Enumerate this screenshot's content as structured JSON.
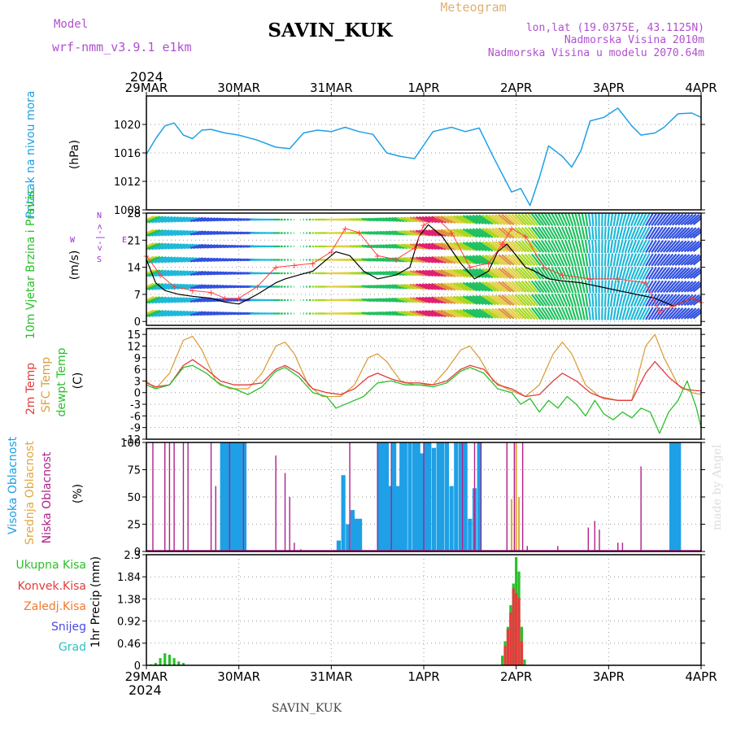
{
  "header": {
    "model_label": "Model",
    "model_name": "wrf-nmm_v3.9.1 e1km",
    "station": "SAVIN_KUK",
    "meteogram_label": "Meteogram",
    "lonlat": "lon,lat (19.0375E, 43.1125N)",
    "altitude": "Nadmorska Visina 2010m",
    "model_altitude": "Nadmorska Visina u modelu 2070.64m",
    "year_top": "2024",
    "year_bottom": "2024",
    "footer_station": "SAVIN_KUK",
    "watermark": "made by Angel"
  },
  "colors": {
    "pressure": "#1ea0e6",
    "wind_label": "#2ac02a",
    "wind_dir": "#9b30d0",
    "temp2m": "#e23c3c",
    "sfc": "#dba040",
    "dew": "#2ac02a",
    "high_cloud": "#1ea0e6",
    "mid_cloud": "#e0a840",
    "low_cloud": "#b0208a",
    "precip_total": "#2ac02a",
    "precip_conv": "#e23c3c",
    "freezing": "#f07a30",
    "snow": "#4a4ae0",
    "hail": "#30c0c0",
    "header_purple": "#b050d0",
    "meteogram_color": "#e0b070"
  },
  "chart_data": [
    {
      "type": "line",
      "name": "pressure",
      "x_ticks": [
        "29MAR",
        "30MAR",
        "31MAR",
        "1APR",
        "2APR",
        "3APR",
        "4APR"
      ],
      "ylabel": "Pritisak na nivou mora",
      "unit": "(hPa)",
      "ylim": [
        1008,
        1024
      ],
      "yticks": [
        1008,
        1012,
        1016,
        1020
      ],
      "grid": true,
      "series": [
        {
          "x": [
            0,
            0.1,
            0.2,
            0.3,
            0.4,
            0.5,
            0.6,
            0.7,
            0.85,
            1.0,
            1.2,
            1.4,
            1.55,
            1.7,
            1.85,
            2.0,
            2.15,
            2.3,
            2.45,
            2.6,
            2.75,
            2.9,
            3.1,
            3.3,
            3.45,
            3.6,
            3.75,
            3.85,
            3.95,
            4.05,
            4.15,
            4.25,
            4.35,
            4.5,
            4.6,
            4.7,
            4.8,
            4.95,
            5.1,
            5.25,
            5.35,
            5.5,
            5.6,
            5.75,
            5.9,
            6.0
          ],
          "y": [
            1015.8,
            1018.0,
            1019.8,
            1020.2,
            1018.5,
            1018.0,
            1019.2,
            1019.3,
            1018.8,
            1018.5,
            1017.8,
            1016.8,
            1016.6,
            1018.8,
            1019.2,
            1019.0,
            1019.6,
            1019.0,
            1018.6,
            1016.0,
            1015.5,
            1015.2,
            1019.0,
            1019.6,
            1019.0,
            1019.5,
            1015.5,
            1013.0,
            1010.5,
            1011.0,
            1008.6,
            1012.5,
            1017.0,
            1015.5,
            1014.0,
            1016.3,
            1020.5,
            1021.0,
            1022.3,
            1019.8,
            1018.5,
            1018.8,
            1019.6,
            1021.5,
            1021.6,
            1021.0
          ]
        }
      ]
    },
    {
      "type": "line",
      "name": "wind",
      "ylabel": "10m Vjetar Brzina i Pravac",
      "unit": "(m/s)",
      "direction_legend": [
        "W",
        "<-|->",
        "E",
        "N",
        "S"
      ],
      "ylim": [
        -1,
        28
      ],
      "yticks": [
        0,
        7,
        14,
        21,
        28
      ],
      "grid": true,
      "series": [
        {
          "name": "speed",
          "x": [
            0,
            0.1,
            0.2,
            0.35,
            0.5,
            0.7,
            0.85,
            1.0,
            1.2,
            1.4,
            1.5,
            1.65,
            1.8,
            1.95,
            2.05,
            2.2,
            2.35,
            2.5,
            2.7,
            2.85,
            2.95,
            3.05,
            3.2,
            3.4,
            3.55,
            3.7,
            3.8,
            3.9,
            4.0,
            4.1,
            4.2,
            4.35,
            4.5,
            4.7,
            4.9,
            5.1,
            5.3,
            5.5,
            5.7,
            5.9,
            6.0
          ],
          "y": [
            16,
            10,
            8,
            7,
            6.5,
            6,
            5,
            4.5,
            7,
            10,
            11,
            12,
            13,
            16,
            18,
            17,
            13,
            11,
            12,
            14,
            22,
            25,
            22,
            15,
            11,
            13,
            18,
            20,
            17,
            14,
            13,
            11,
            10.5,
            10,
            9,
            8,
            7,
            6,
            4,
            6,
            5
          ]
        },
        {
          "name": "gust",
          "x": [
            0,
            0.15,
            0.3,
            0.5,
            0.7,
            0.85,
            1.0,
            1.2,
            1.4,
            1.6,
            1.8,
            2.0,
            2.15,
            2.3,
            2.5,
            2.7,
            2.9,
            3.0,
            3.15,
            3.3,
            3.5,
            3.7,
            3.85,
            3.95,
            4.1,
            4.3,
            4.5,
            4.8,
            5.1,
            5.4,
            5.55,
            5.7,
            5.9,
            6.0
          ],
          "y": [
            17,
            12,
            9,
            8,
            7.5,
            6,
            6,
            9,
            14,
            14.5,
            15,
            18,
            24,
            23,
            17,
            16,
            19,
            25,
            26.5,
            23,
            14,
            15,
            20,
            24,
            22,
            14,
            12,
            11,
            11,
            10,
            2.5,
            4,
            6,
            5
          ]
        }
      ]
    },
    {
      "type": "line",
      "name": "temperature",
      "ylabel": [
        "2m Temp",
        "SFC Temp",
        "dewpt Temp"
      ],
      "unit": "(C)",
      "ylim": [
        -12,
        16.5
      ],
      "yticks": [
        -12,
        -9,
        -6,
        -3,
        0,
        3,
        6,
        9,
        12,
        15
      ],
      "grid": true,
      "series": [
        {
          "name": "2m Temp",
          "x": [
            0,
            0.1,
            0.25,
            0.4,
            0.5,
            0.65,
            0.8,
            0.95,
            1.1,
            1.25,
            1.4,
            1.5,
            1.65,
            1.8,
            1.95,
            2.1,
            2.25,
            2.4,
            2.5,
            2.65,
            2.8,
            2.95,
            3.1,
            3.25,
            3.4,
            3.5,
            3.65,
            3.8,
            3.95,
            4.1,
            4.25,
            4.4,
            4.5,
            4.65,
            4.8,
            4.95,
            5.1,
            5.25,
            5.4,
            5.5,
            5.65,
            5.8,
            5.95,
            6.0
          ],
          "y": [
            2.5,
            1.5,
            2,
            7,
            8.5,
            6,
            3,
            2,
            2,
            2.5,
            6,
            7,
            5,
            1,
            0,
            -0.5,
            1,
            4,
            5,
            3.5,
            2.5,
            2.5,
            2,
            3,
            6,
            7,
            6,
            2,
            1,
            -1,
            -0.5,
            3,
            5,
            3,
            0,
            -1.5,
            -2,
            -2,
            5,
            8,
            4,
            1,
            0.5,
            0.5
          ]
        },
        {
          "name": "SFC Temp",
          "x": [
            0,
            0.1,
            0.25,
            0.4,
            0.5,
            0.6,
            0.75,
            0.9,
            1.1,
            1.25,
            1.4,
            1.5,
            1.6,
            1.75,
            1.9,
            2.1,
            2.25,
            2.4,
            2.5,
            2.6,
            2.75,
            2.9,
            3.1,
            3.25,
            3.4,
            3.5,
            3.6,
            3.75,
            3.9,
            4.1,
            4.25,
            4.4,
            4.5,
            4.6,
            4.75,
            4.9,
            5.1,
            5.25,
            5.4,
            5.5,
            5.6,
            5.75,
            5.9,
            6.0
          ],
          "y": [
            3,
            1,
            5,
            13.5,
            14.5,
            11,
            3,
            1,
            1,
            5,
            12,
            13,
            10,
            2,
            -1,
            -1,
            2,
            9,
            10,
            8,
            3,
            2,
            2,
            6,
            11,
            12,
            9,
            3,
            1,
            -1,
            2,
            10,
            13,
            10,
            2,
            -1,
            -2,
            -2,
            12,
            15,
            9,
            2,
            0,
            -0.5
          ]
        },
        {
          "name": "dewpt Temp",
          "x": [
            0,
            0.1,
            0.25,
            0.4,
            0.5,
            0.65,
            0.8,
            0.95,
            1.1,
            1.25,
            1.4,
            1.5,
            1.65,
            1.8,
            1.95,
            2.05,
            2.2,
            2.35,
            2.5,
            2.65,
            2.8,
            2.95,
            3.1,
            3.25,
            3.4,
            3.5,
            3.65,
            3.8,
            3.95,
            4.05,
            4.15,
            4.25,
            4.35,
            4.45,
            4.55,
            4.65,
            4.75,
            4.85,
            4.95,
            5.05,
            5.15,
            5.25,
            5.35,
            5.45,
            5.55,
            5.65,
            5.75,
            5.85,
            5.95,
            6.0
          ],
          "y": [
            2,
            1,
            2,
            6.5,
            7,
            5,
            2,
            1,
            -0.5,
            1.5,
            5.5,
            6.5,
            4,
            0,
            -1,
            -4,
            -2.5,
            -1,
            2.5,
            3,
            2,
            2,
            1.5,
            2.5,
            5.5,
            6.5,
            5,
            1,
            0,
            -3,
            -1.5,
            -5,
            -2,
            -4,
            -1,
            -3,
            -6,
            -2,
            -5.5,
            -7,
            -5,
            -6.5,
            -4,
            -5,
            -10.5,
            -5,
            -2,
            3,
            -4,
            -9
          ]
        }
      ]
    },
    {
      "type": "bar",
      "name": "cloud",
      "ylabel": [
        "Visoka Oblacnost",
        "Srednja Oblacnost",
        "Niska Oblacnost"
      ],
      "unit": "(%)",
      "ylim": [
        0,
        100
      ],
      "yticks": [
        0,
        25,
        50,
        75,
        100
      ],
      "grid": true,
      "series": [
        {
          "name": "Visoka Oblacnost",
          "x": [
            0.82,
            0.86,
            0.9,
            0.94,
            0.98,
            1.02,
            1.06,
            2.08,
            2.13,
            2.18,
            2.23,
            2.27,
            2.31,
            2.52,
            2.56,
            2.6,
            2.64,
            2.68,
            2.72,
            2.76,
            2.8,
            2.85,
            2.9,
            2.94,
            2.98,
            3.02,
            3.06,
            3.11,
            3.16,
            3.2,
            3.25,
            3.3,
            3.35,
            3.4,
            3.45,
            3.5,
            3.55,
            3.6,
            5.68,
            5.72,
            5.76
          ],
          "values": [
            100,
            100,
            100,
            100,
            100,
            100,
            100,
            10,
            70,
            25,
            38,
            30,
            30,
            100,
            100,
            100,
            60,
            100,
            60,
            100,
            100,
            100,
            100,
            100,
            90,
            100,
            100,
            95,
            100,
            100,
            100,
            60,
            100,
            100,
            100,
            30,
            58,
            100,
            100,
            100,
            100
          ]
        },
        {
          "name": "Srednja Oblacnost",
          "x": [
            3.95,
            4.0,
            4.03
          ],
          "values": [
            48,
            100,
            50
          ]
        },
        {
          "name": "Niska Oblacnost",
          "x": [
            0.07,
            0.2,
            0.25,
            0.3,
            0.4,
            0.45,
            0.7,
            0.75,
            0.9,
            1.05,
            1.4,
            1.5,
            1.55,
            1.6,
            1.67,
            2.2,
            2.5,
            2.65,
            3.0,
            3.42,
            3.55,
            3.62,
            3.9,
            3.98,
            4.07,
            4.12,
            4.45,
            4.78,
            4.85,
            4.9,
            5.1,
            5.15,
            5.35
          ],
          "values": [
            100,
            100,
            100,
            100,
            100,
            100,
            100,
            60,
            100,
            100,
            88,
            72,
            50,
            8,
            2,
            100,
            100,
            100,
            100,
            100,
            100,
            100,
            100,
            100,
            100,
            5,
            5,
            22,
            28,
            20,
            8,
            8,
            78
          ]
        }
      ]
    },
    {
      "type": "bar",
      "name": "precipitation",
      "ylabel": "1hr Precip",
      "unit": "(mm)",
      "legend": [
        "Ukupna Kisa",
        "Konvek.Kisa",
        "Zaledj.Kisa",
        "Snijeg",
        "Grad"
      ],
      "ylim": [
        0,
        2.3
      ],
      "yticks": [
        0,
        0.46,
        0.92,
        1.38,
        1.84,
        2.3
      ],
      "grid": true,
      "series": [
        {
          "name": "Ukupna Kisa",
          "x": [
            0.05,
            0.1,
            0.15,
            0.2,
            0.25,
            0.3,
            0.35,
            0.4,
            3.85,
            3.88,
            3.91,
            3.94,
            3.97,
            4.0,
            4.03,
            4.06,
            4.09
          ],
          "values": [
            0.02,
            0.05,
            0.15,
            0.25,
            0.22,
            0.15,
            0.08,
            0.05,
            0.2,
            0.5,
            0.8,
            1.25,
            1.7,
            2.25,
            1.95,
            0.8,
            0.12
          ]
        },
        {
          "name": "Konvek.Kisa",
          "x": [
            3.88,
            3.91,
            3.94,
            3.97,
            4.0,
            4.03,
            4.06
          ],
          "values": [
            0.4,
            0.75,
            1.1,
            1.6,
            1.5,
            1.4,
            0.5
          ]
        }
      ]
    }
  ]
}
